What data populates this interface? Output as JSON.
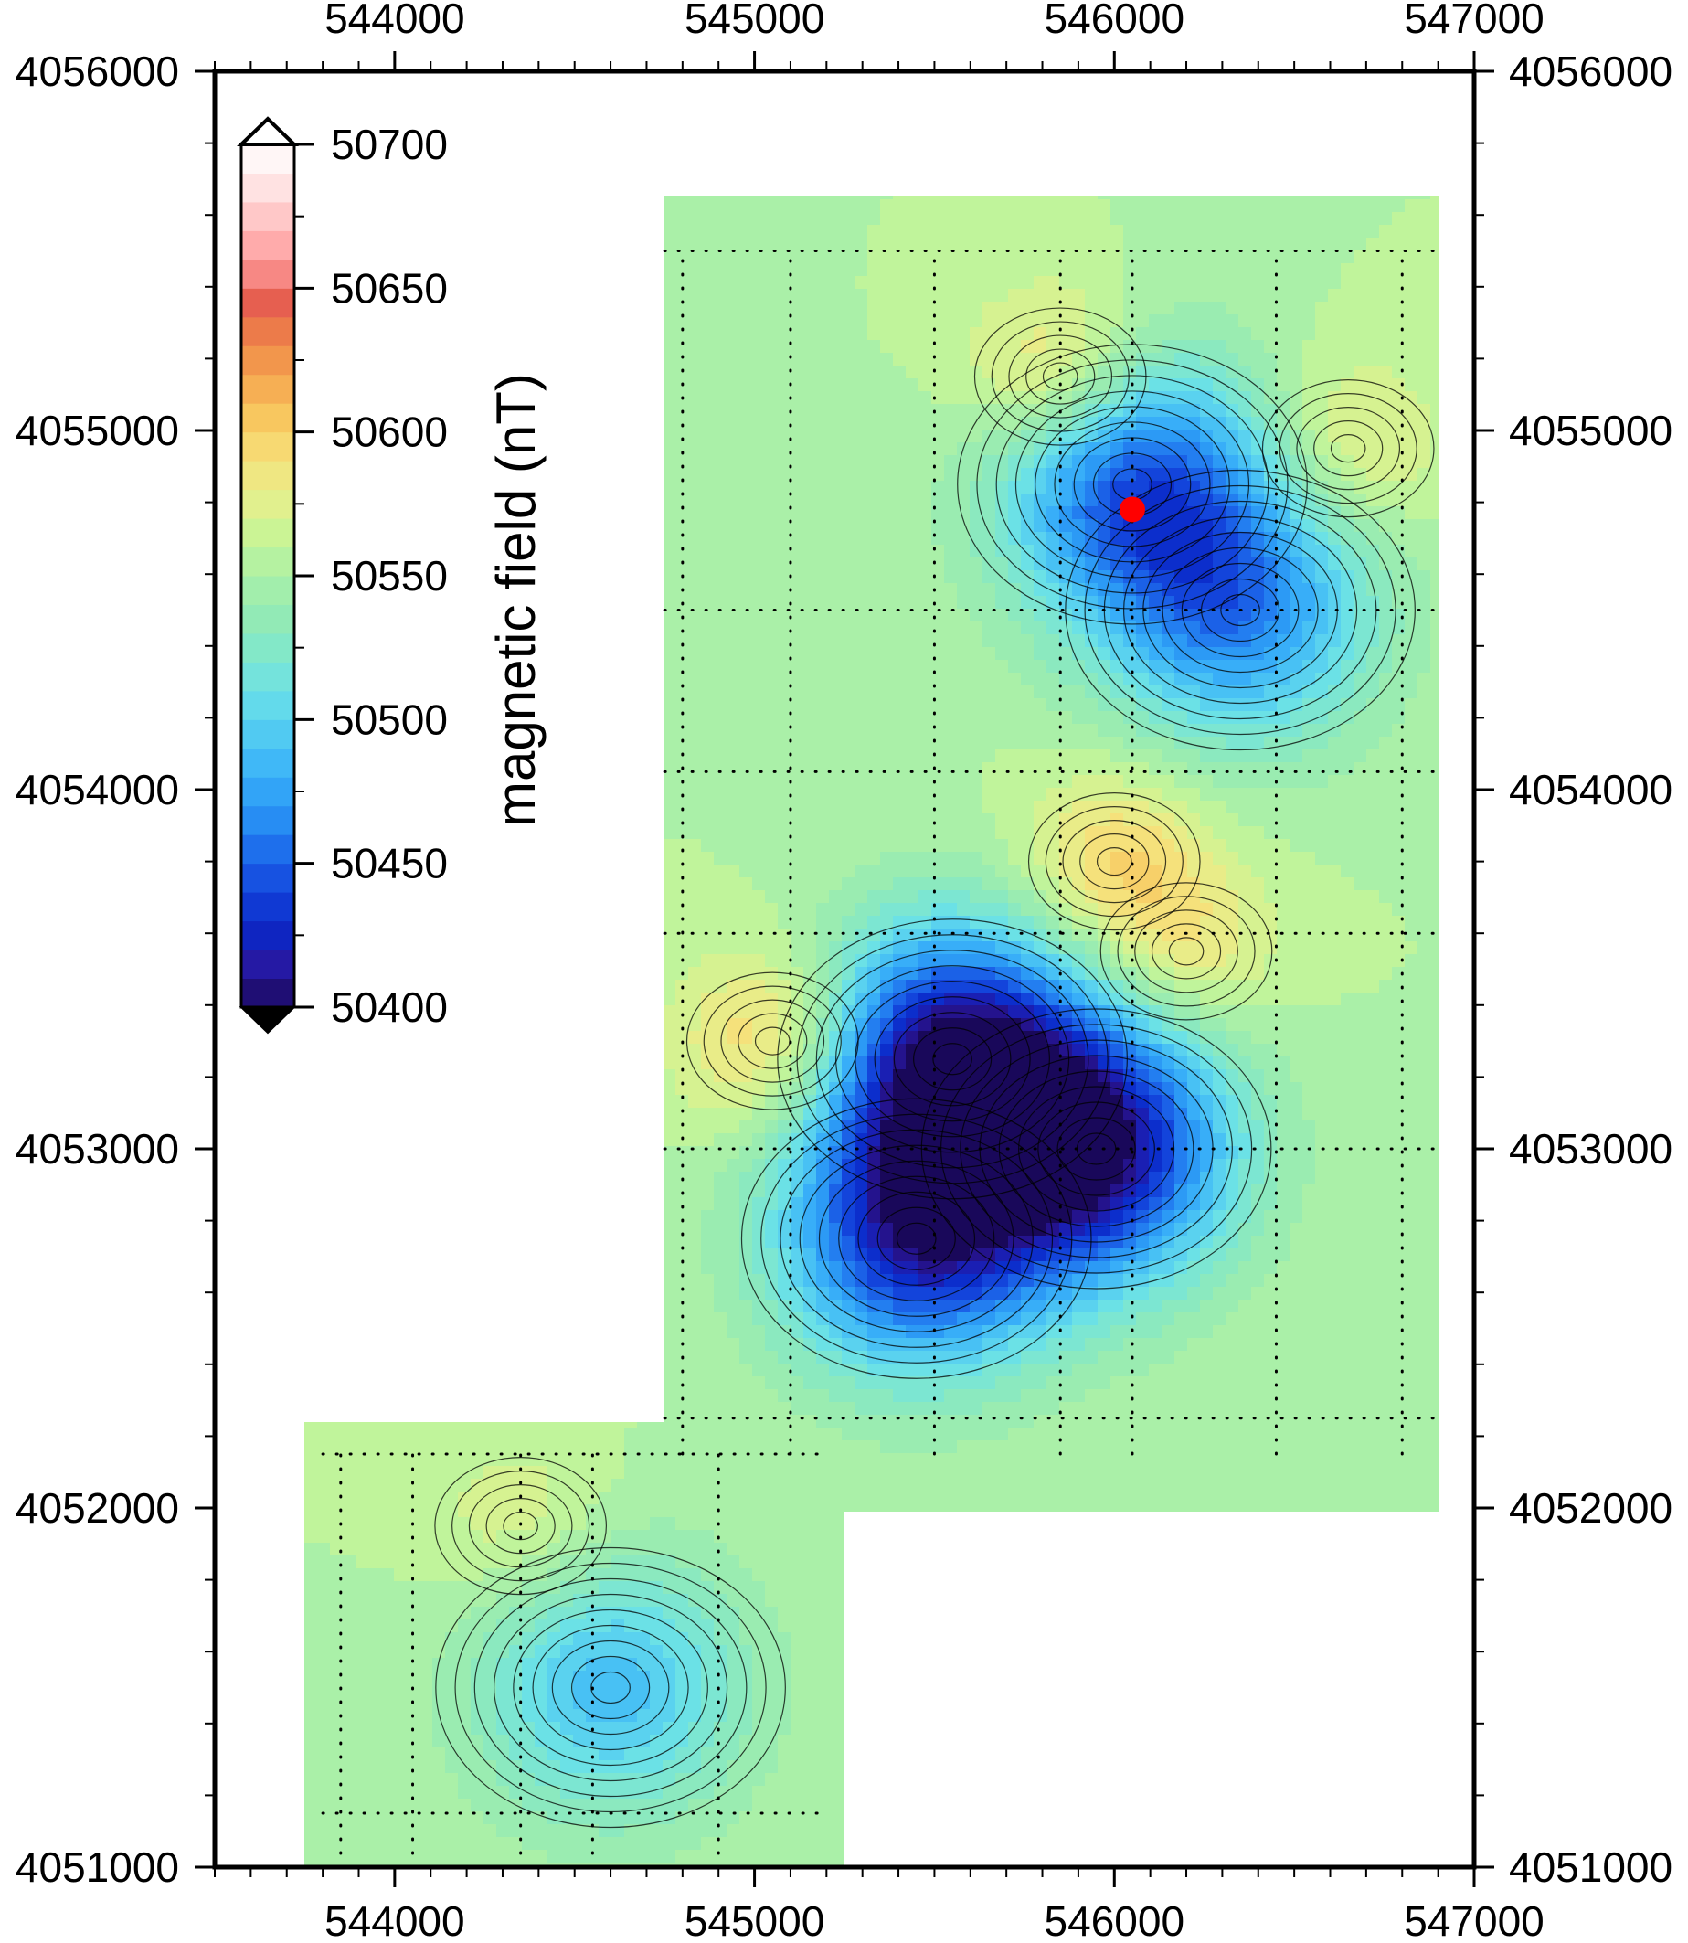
{
  "map": {
    "x_axis": {
      "ticks": [
        544000,
        545000,
        546000,
        547000
      ],
      "tick_labels": [
        "544000",
        "545000",
        "546000",
        "547000"
      ],
      "range": [
        543500,
        547000
      ]
    },
    "y_axis": {
      "ticks": [
        4051000,
        4052000,
        4053000,
        4054000,
        4055000,
        4056000
      ],
      "tick_labels": [
        "4051000",
        "4052000",
        "4053000",
        "4054000",
        "4055000",
        "4056000"
      ],
      "range": [
        4051000,
        4056000
      ]
    },
    "colorbar": {
      "title": "magnetic field (nT)",
      "ticks": [
        50400,
        50450,
        50500,
        50550,
        50600,
        50650,
        50700
      ],
      "tick_labels": [
        "50400",
        "50450",
        "50500",
        "50550",
        "50600",
        "50650",
        "50700"
      ],
      "range": [
        50400,
        50700
      ],
      "levels": 30,
      "colors": [
        "#19085a",
        "#2817a0",
        "#0a28c8",
        "#1446dc",
        "#1e6eec",
        "#2a96f5",
        "#3ab2f8",
        "#52cbf2",
        "#6ae0e8",
        "#80e8cc",
        "#94eab4",
        "#aaf0a8",
        "#c8f596",
        "#e6ef8c",
        "#f6e07a",
        "#f8c860",
        "#f6a850",
        "#ee8448",
        "#e65e50",
        "#ff9a9a",
        "#ffc2c2",
        "#ffe6e6",
        "#ffffff"
      ]
    },
    "features": {
      "grid_anomaly": "magnetic anomaly contour map",
      "marker_color": "#ff0000",
      "survey_line_color": "#000000"
    }
  },
  "chart_data": {
    "type": "heatmap",
    "title": "",
    "xlabel": "",
    "ylabel": "",
    "xlim": [
      543500,
      547000
    ],
    "ylim": [
      4051000,
      4056000
    ],
    "colorbar_label": "magnetic field (nT)",
    "colorbar_range": [
      50400,
      50700
    ],
    "survey_areas": [
      {
        "x": [
          544750,
          546900
        ],
        "y": [
          4052000,
          4055650
        ]
      },
      {
        "x": [
          543750,
          545250
        ],
        "y": [
          4051000,
          4052250
        ]
      }
    ],
    "anomalies": [
      {
        "kind": "low",
        "x": 545550,
        "y": 4053250,
        "value": 50410
      },
      {
        "kind": "low",
        "x": 545950,
        "y": 4053000,
        "value": 50415
      },
      {
        "kind": "low",
        "x": 545450,
        "y": 4052750,
        "value": 50430
      },
      {
        "kind": "low",
        "x": 546050,
        "y": 4054850,
        "value": 50450
      },
      {
        "kind": "low",
        "x": 546350,
        "y": 4054500,
        "value": 50470
      },
      {
        "kind": "low",
        "x": 544600,
        "y": 4051500,
        "value": 50490
      },
      {
        "kind": "high",
        "x": 545850,
        "y": 4055150,
        "value": 50605
      },
      {
        "kind": "high",
        "x": 546650,
        "y": 4054950,
        "value": 50585
      },
      {
        "kind": "high",
        "x": 545050,
        "y": 4053300,
        "value": 50605
      },
      {
        "kind": "high",
        "x": 546000,
        "y": 4053800,
        "value": 50595
      },
      {
        "kind": "high",
        "x": 546200,
        "y": 4053550,
        "value": 50585
      },
      {
        "kind": "high",
        "x": 544350,
        "y": 4051950,
        "value": 50575
      }
    ],
    "marker": {
      "x": 546050,
      "y": 4054780
    }
  }
}
